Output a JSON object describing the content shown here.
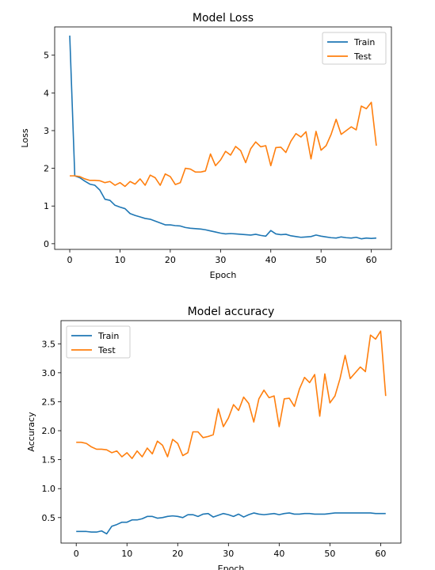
{
  "chart_data": [
    {
      "type": "line",
      "title": "Model Loss",
      "xlabel": "Epoch",
      "ylabel": "Loss",
      "xlim": [
        -3,
        64
      ],
      "ylim": [
        -0.15,
        5.75
      ],
      "xticks": [
        0,
        10,
        20,
        30,
        40,
        50,
        60
      ],
      "yticks": [
        0,
        1,
        2,
        3,
        4,
        5
      ],
      "grid": false,
      "legend": "top-right",
      "series": [
        {
          "name": "Train",
          "color": "#1f77b4",
          "x": [
            0,
            1,
            2,
            3,
            4,
            5,
            6,
            7,
            8,
            9,
            10,
            11,
            12,
            13,
            14,
            15,
            16,
            17,
            18,
            19,
            20,
            21,
            22,
            23,
            24,
            25,
            26,
            27,
            28,
            29,
            30,
            31,
            32,
            33,
            34,
            35,
            36,
            37,
            38,
            39,
            40,
            41,
            42,
            43,
            44,
            45,
            46,
            47,
            48,
            49,
            50,
            51,
            52,
            53,
            54,
            55,
            56,
            57,
            58,
            59,
            60,
            61
          ],
          "values": [
            5.52,
            1.8,
            1.75,
            1.66,
            1.58,
            1.55,
            1.42,
            1.18,
            1.15,
            1.02,
            0.97,
            0.93,
            0.8,
            0.75,
            0.71,
            0.67,
            0.65,
            0.6,
            0.55,
            0.5,
            0.5,
            0.48,
            0.47,
            0.43,
            0.41,
            0.4,
            0.39,
            0.37,
            0.34,
            0.31,
            0.28,
            0.26,
            0.27,
            0.26,
            0.25,
            0.24,
            0.23,
            0.25,
            0.22,
            0.2,
            0.35,
            0.26,
            0.24,
            0.25,
            0.21,
            0.19,
            0.17,
            0.18,
            0.19,
            0.23,
            0.2,
            0.18,
            0.16,
            0.15,
            0.18,
            0.16,
            0.15,
            0.17,
            0.13,
            0.15,
            0.14,
            0.15
          ]
        },
        {
          "name": "Test",
          "color": "#ff7f0e",
          "x": [
            0,
            1,
            2,
            3,
            4,
            5,
            6,
            7,
            8,
            9,
            10,
            11,
            12,
            13,
            14,
            15,
            16,
            17,
            18,
            19,
            20,
            21,
            22,
            23,
            24,
            25,
            26,
            27,
            28,
            29,
            30,
            31,
            32,
            33,
            34,
            35,
            36,
            37,
            38,
            39,
            40,
            41,
            42,
            43,
            44,
            45,
            46,
            47,
            48,
            49,
            50,
            51,
            52,
            53,
            54,
            55,
            56,
            57,
            58,
            59,
            60,
            61
          ],
          "values": [
            1.8,
            1.8,
            1.78,
            1.72,
            1.68,
            1.68,
            1.67,
            1.62,
            1.65,
            1.55,
            1.62,
            1.52,
            1.65,
            1.58,
            1.72,
            1.55,
            1.82,
            1.75,
            1.55,
            1.85,
            1.78,
            1.57,
            1.62,
            2.0,
            1.98,
            1.9,
            1.9,
            1.93,
            2.38,
            2.07,
            2.22,
            2.45,
            2.35,
            2.58,
            2.47,
            2.15,
            2.52,
            2.7,
            2.57,
            2.6,
            2.07,
            2.55,
            2.56,
            2.42,
            2.72,
            2.92,
            2.83,
            2.97,
            2.25,
            2.98,
            2.48,
            2.6,
            2.9,
            3.3,
            2.9,
            3.0,
            3.1,
            3.02,
            3.65,
            3.58,
            3.75,
            2.6
          ]
        }
      ]
    },
    {
      "type": "line",
      "title": "Model accuracy",
      "xlabel": "Epoch",
      "ylabel": "Accuracy",
      "xlim": [
        -3,
        64
      ],
      "ylim": [
        0.06,
        3.9
      ],
      "xticks": [
        0,
        10,
        20,
        30,
        40,
        50,
        60
      ],
      "yticks": [
        0.5,
        1.0,
        1.5,
        2.0,
        2.5,
        3.0,
        3.5
      ],
      "ytick_labels": [
        "0.5",
        "1.0",
        "1.5",
        "2.0",
        "2.5",
        "3.0",
        "3.5"
      ],
      "grid": false,
      "legend": "top-left",
      "series": [
        {
          "name": "Train",
          "color": "#1f77b4",
          "x": [
            0,
            1,
            2,
            3,
            4,
            5,
            6,
            7,
            8,
            9,
            10,
            11,
            12,
            13,
            14,
            15,
            16,
            17,
            18,
            19,
            20,
            21,
            22,
            23,
            24,
            25,
            26,
            27,
            28,
            29,
            30,
            31,
            32,
            33,
            34,
            35,
            36,
            37,
            38,
            39,
            40,
            41,
            42,
            43,
            44,
            45,
            46,
            47,
            48,
            49,
            50,
            51,
            52,
            53,
            54,
            55,
            56,
            57,
            58,
            59,
            60,
            61
          ],
          "values": [
            0.26,
            0.26,
            0.26,
            0.25,
            0.25,
            0.27,
            0.22,
            0.35,
            0.38,
            0.42,
            0.42,
            0.46,
            0.46,
            0.48,
            0.52,
            0.52,
            0.49,
            0.5,
            0.52,
            0.53,
            0.52,
            0.5,
            0.55,
            0.55,
            0.52,
            0.56,
            0.57,
            0.51,
            0.54,
            0.57,
            0.55,
            0.52,
            0.56,
            0.51,
            0.55,
            0.58,
            0.56,
            0.55,
            0.56,
            0.57,
            0.55,
            0.57,
            0.58,
            0.56,
            0.56,
            0.57,
            0.57,
            0.56,
            0.56,
            0.56,
            0.57,
            0.58,
            0.58,
            0.58,
            0.58,
            0.58,
            0.58,
            0.58,
            0.58,
            0.57,
            0.57,
            0.57
          ]
        },
        {
          "name": "Test",
          "color": "#ff7f0e",
          "x": [
            0,
            1,
            2,
            3,
            4,
            5,
            6,
            7,
            8,
            9,
            10,
            11,
            12,
            13,
            14,
            15,
            16,
            17,
            18,
            19,
            20,
            21,
            22,
            23,
            24,
            25,
            26,
            27,
            28,
            29,
            30,
            31,
            32,
            33,
            34,
            35,
            36,
            37,
            38,
            39,
            40,
            41,
            42,
            43,
            44,
            45,
            46,
            47,
            48,
            49,
            50,
            51,
            52,
            53,
            54,
            55,
            56,
            57,
            58,
            59,
            60,
            61
          ],
          "values": [
            1.8,
            1.8,
            1.78,
            1.72,
            1.68,
            1.68,
            1.67,
            1.62,
            1.65,
            1.55,
            1.62,
            1.52,
            1.65,
            1.55,
            1.7,
            1.6,
            1.82,
            1.75,
            1.55,
            1.85,
            1.78,
            1.57,
            1.62,
            1.98,
            1.98,
            1.88,
            1.9,
            1.93,
            2.38,
            2.07,
            2.22,
            2.45,
            2.35,
            2.58,
            2.47,
            2.15,
            2.55,
            2.7,
            2.57,
            2.6,
            2.07,
            2.55,
            2.56,
            2.42,
            2.72,
            2.92,
            2.83,
            2.97,
            2.25,
            2.98,
            2.48,
            2.6,
            2.9,
            3.3,
            2.9,
            3.0,
            3.1,
            3.02,
            3.65,
            3.58,
            3.72,
            2.6
          ]
        }
      ]
    }
  ]
}
